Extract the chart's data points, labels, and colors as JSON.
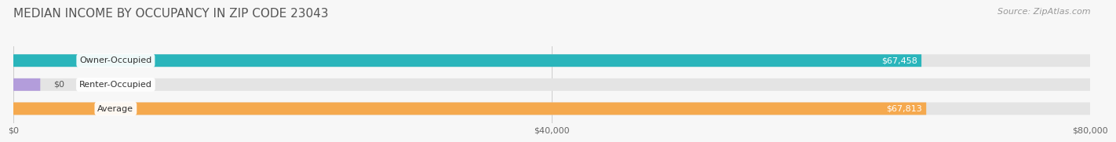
{
  "title": "MEDIAN INCOME BY OCCUPANCY IN ZIP CODE 23043",
  "source": "Source: ZipAtlas.com",
  "categories": [
    "Owner-Occupied",
    "Renter-Occupied",
    "Average"
  ],
  "values": [
    67458,
    0,
    67813
  ],
  "labels": [
    "$67,458",
    "$0",
    "$67,813"
  ],
  "bar_colors": [
    "#2ab5bb",
    "#b39ddb",
    "#f5a94e"
  ],
  "bar_bg_color": "#e4e4e4",
  "xlim": [
    0,
    80000
  ],
  "xticks": [
    0,
    40000,
    80000
  ],
  "xtick_labels": [
    "$0",
    "$40,000",
    "$80,000"
  ],
  "title_fontsize": 11,
  "source_fontsize": 8,
  "bar_label_fontsize": 8,
  "category_fontsize": 8,
  "tick_fontsize": 8,
  "bar_height": 0.52,
  "background_color": "#f7f7f7",
  "fig_width": 14.06,
  "fig_height": 1.96
}
